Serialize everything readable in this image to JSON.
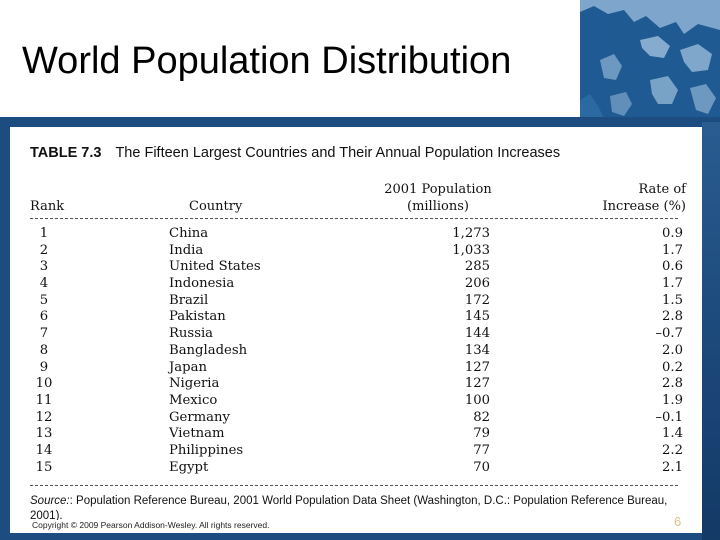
{
  "slide": {
    "title": "World Population Distribution",
    "copyright": "Copyright © 2009 Pearson Addison-Wesley. All rights reserved.",
    "page_number": "6"
  },
  "table": {
    "number": "TABLE 7.3",
    "caption": "The Fifteen Largest Countries and Their Annual Population Increases",
    "headers": {
      "rank": "Rank",
      "country": "Country",
      "population_line1": "2001 Population",
      "population_line2": "(millions)",
      "rate_line1": "Rate of",
      "rate_line2": "Increase (%)"
    },
    "rows": [
      {
        "rank": "1",
        "country": "China",
        "population": "1,273",
        "rate": "0.9"
      },
      {
        "rank": "2",
        "country": "India",
        "population": "1,033",
        "rate": "1.7"
      },
      {
        "rank": "3",
        "country": "United States",
        "population": "285",
        "rate": "0.6"
      },
      {
        "rank": "4",
        "country": "Indonesia",
        "population": "206",
        "rate": "1.7"
      },
      {
        "rank": "5",
        "country": "Brazil",
        "population": "172",
        "rate": "1.5"
      },
      {
        "rank": "6",
        "country": "Pakistan",
        "population": "145",
        "rate": "2.8"
      },
      {
        "rank": "7",
        "country": "Russia",
        "population": "144",
        "rate": "–0.7"
      },
      {
        "rank": "8",
        "country": "Bangladesh",
        "population": "134",
        "rate": "2.0"
      },
      {
        "rank": "9",
        "country": "Japan",
        "population": "127",
        "rate": "0.2"
      },
      {
        "rank": "10",
        "country": "Nigeria",
        "population": "127",
        "rate": "2.8"
      },
      {
        "rank": "11",
        "country": "Mexico",
        "population": "100",
        "rate": "1.9"
      },
      {
        "rank": "12",
        "country": "Germany",
        "population": "82",
        "rate": "–0.1"
      },
      {
        "rank": "13",
        "country": "Vietnam",
        "population": "79",
        "rate": "1.4"
      },
      {
        "rank": "14",
        "country": "Philippines",
        "population": "77",
        "rate": "2.2"
      },
      {
        "rank": "15",
        "country": "Egypt",
        "population": "70",
        "rate": "2.1"
      }
    ],
    "source_label": "Source:",
    "source_text": ": Population Reference Bureau, 2001 World Population Data Sheet (Washington, D.C.: Population Reference Bureau, 2001)."
  },
  "colors": {
    "band": "#1d4c80",
    "map_water": "#1f5b92",
    "map_land": "#8fb3d6",
    "page_number": "#d9c28a"
  },
  "icons": {
    "corner_graphic": "world-map-icon"
  }
}
